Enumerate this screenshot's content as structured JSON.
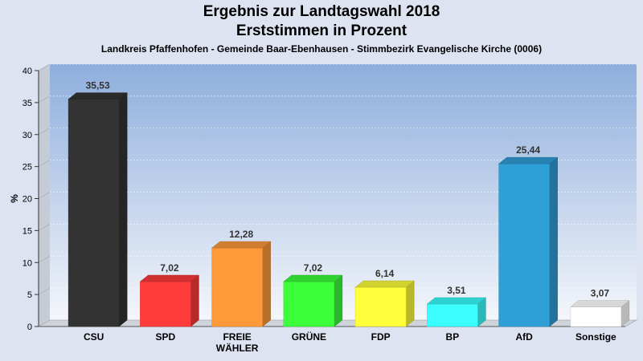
{
  "chart_data": {
    "type": "bar",
    "title": "Ergebnis zur Landtagswahl 2018",
    "subtitle": "Erststimmen in Prozent",
    "caption": "Landkreis Pfaffenhofen - Gemeinde Baar-Ebenhausen - Stimmbezirk Evangelische Kirche (0006)",
    "ylabel": "%",
    "ylim": [
      0,
      40
    ],
    "yticks": [
      0,
      5,
      10,
      15,
      20,
      25,
      30,
      35,
      40
    ],
    "grid": true,
    "categories": [
      [
        "CSU"
      ],
      [
        "SPD"
      ],
      [
        "FREIE",
        "WÄHLER"
      ],
      [
        "GRÜNE"
      ],
      [
        "FDP"
      ],
      [
        "BP"
      ],
      [
        "AfD"
      ],
      [
        "Sonstige"
      ]
    ],
    "values": [
      35.53,
      7.02,
      12.28,
      7.02,
      6.14,
      3.51,
      25.44,
      3.07
    ],
    "value_labels": [
      "35,53",
      "7,02",
      "12,28",
      "7,02",
      "6,14",
      "3,51",
      "25,44",
      "3,07"
    ],
    "colors": [
      "#333333",
      "#ff3b3b",
      "#ff9a3b",
      "#3bff3b",
      "#ffff3b",
      "#3bffff",
      "#2f9fd8",
      "#ffffff"
    ]
  }
}
